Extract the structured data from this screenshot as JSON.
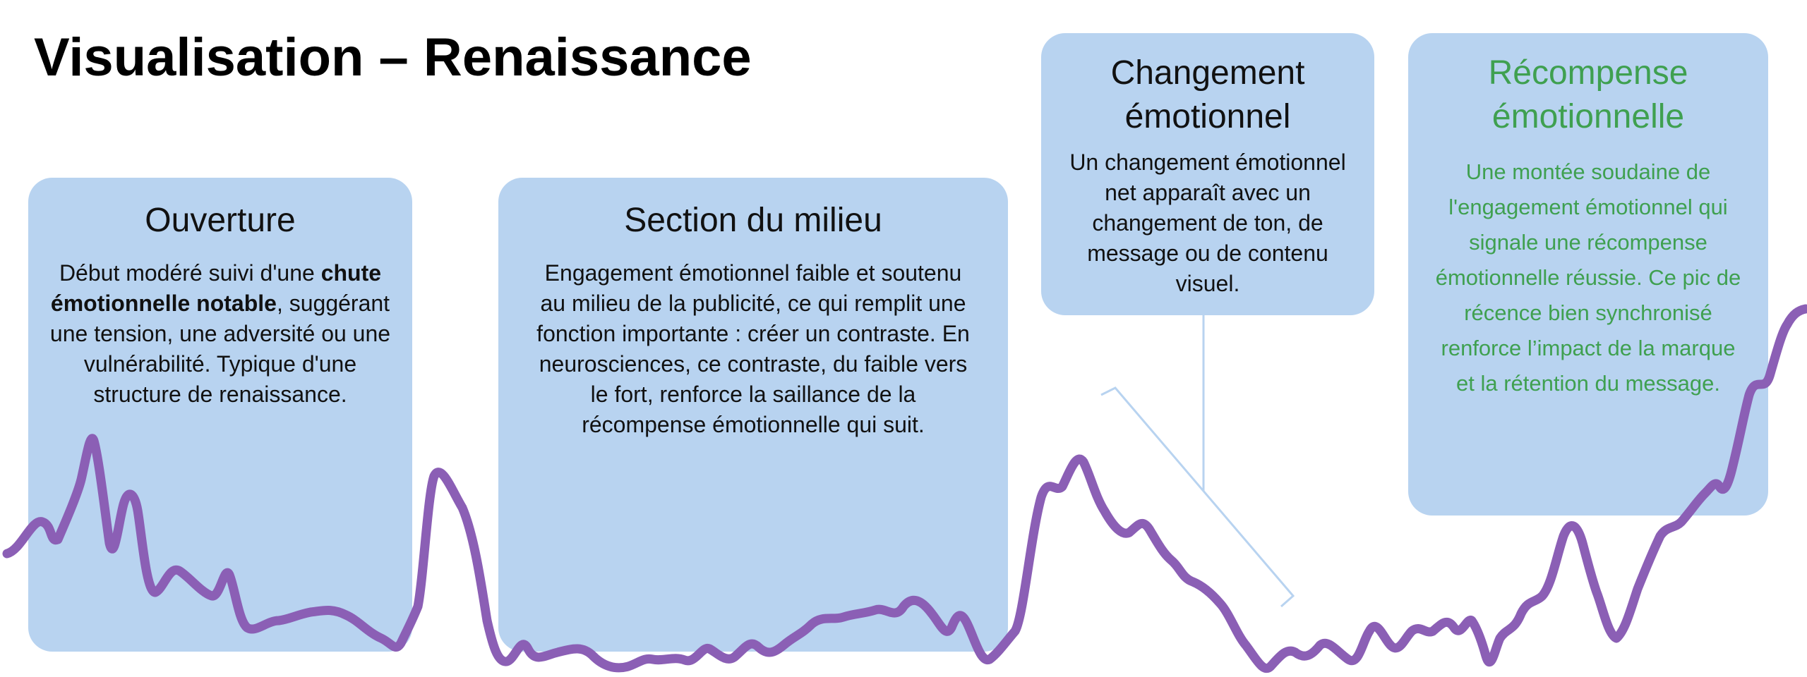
{
  "title": "Visualisation – Renaissance",
  "colors": {
    "box_fill": "#b8d3f0",
    "curve": "#8b5fb5",
    "reward_text": "#3fa050",
    "connector": "#b8d3f0"
  },
  "sections": {
    "opening": {
      "title": "Ouverture",
      "text_before": "Début modéré suivi d'une ",
      "text_bold": "chute émotionnelle notable",
      "text_after": ", suggérant une tension, une adversité ou une vulnérabilité. Typique d'une structure de renaissance."
    },
    "middle": {
      "title": "Section du milieu",
      "text": "Engagement émotionnel faible et soutenu au milieu de la publicité, ce qui remplit une fonction importante : créer un contraste. En neurosciences, ce contraste, du faible vers le fort, renforce la saillance de la récompense émotionnelle qui suit."
    },
    "change": {
      "title": "Changement émotionnel",
      "text": "Un changement émotionnel net apparaît avec un changement de ton, de message ou de contenu visuel."
    },
    "reward": {
      "title": "Récompense émotionnelle",
      "text": "Une montée soudaine de l'engagement émotionnel qui signale une récompense émotionnelle réussie. Ce pic de récence bien synchronisé renforce l’impact de la marque et la rétention du message."
    }
  },
  "icons": {
    "connector": "callout-connector-icon",
    "curve": "emotion-curve-icon"
  }
}
